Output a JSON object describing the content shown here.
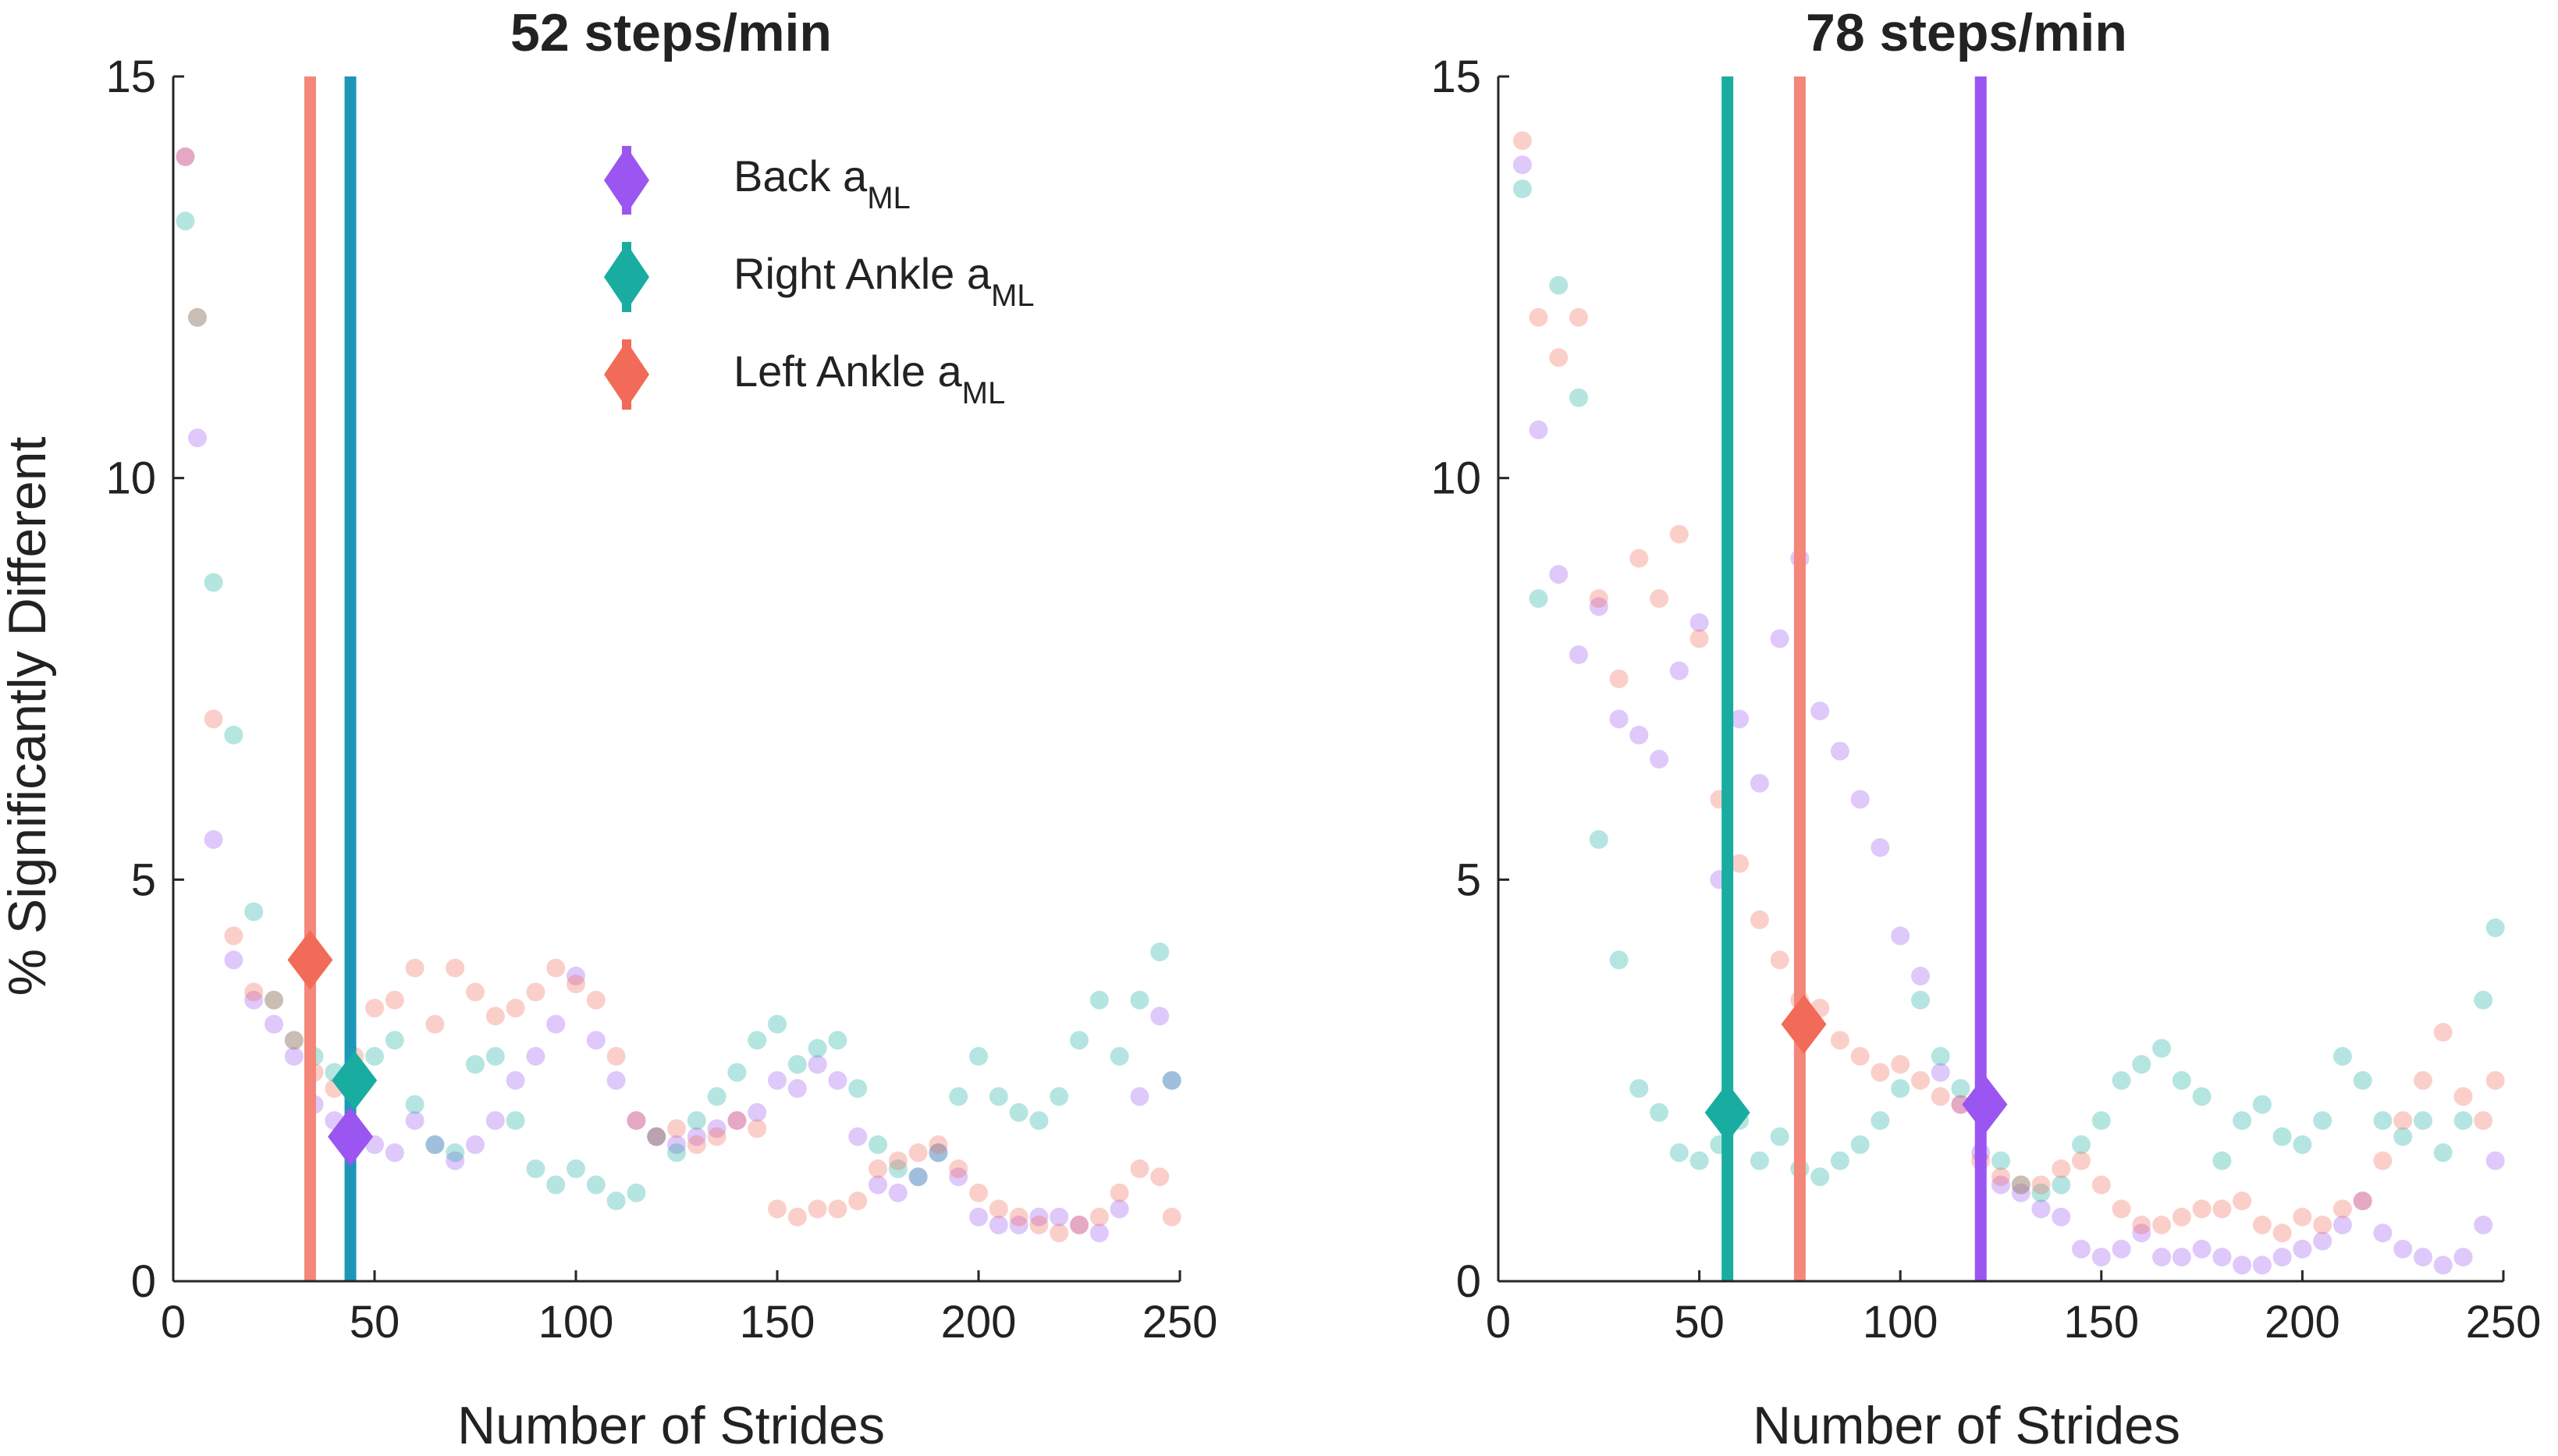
{
  "y_axis_label": "% Significantly Different",
  "legend": {
    "entries": [
      {
        "label": "Back a",
        "subscript": "ML",
        "color": "#9b55f0"
      },
      {
        "label": "Right Ankle a",
        "subscript": "ML",
        "color": "#18ada0"
      },
      {
        "label": "Left Ankle a",
        "subscript": "ML",
        "color": "#f26a58"
      }
    ]
  },
  "colors": {
    "back": "#9b55f0",
    "right_ankle": "#18ada0",
    "left_ankle": "#f26a58",
    "left_ankle_line": "#f4877a",
    "right_ankle_line_left_panel": "#1c97b8",
    "axis": "#262626"
  },
  "chart_data": [
    {
      "type": "scatter",
      "title": "52 steps/min",
      "xlabel": "Number of Strides",
      "ylabel": "% Significantly Different",
      "xlim": [
        0,
        250
      ],
      "ylim": [
        0,
        15
      ],
      "xticks": [
        "0",
        "50",
        "100",
        "150",
        "200",
        "250"
      ],
      "yticks": [
        "0",
        "5",
        "10",
        "15"
      ],
      "vertical_lines": [
        {
          "series": "Left Ankle",
          "x": 34
        },
        {
          "series": "Right Ankle",
          "x": 44
        }
      ],
      "markers": [
        {
          "series": "Left Ankle",
          "x": 34,
          "y": 4.0
        },
        {
          "series": "Right Ankle",
          "x": 45,
          "y": 2.5
        },
        {
          "series": "Back",
          "x": 44,
          "y": 1.8
        }
      ],
      "series": [
        {
          "name": "Back",
          "x": [
            3,
            6,
            10,
            15,
            20,
            25,
            30,
            35,
            40,
            45,
            50,
            55,
            60,
            65,
            70,
            75,
            80,
            85,
            90,
            95,
            100,
            105,
            110,
            115,
            120,
            125,
            130,
            135,
            140,
            145,
            150,
            155,
            160,
            165,
            170,
            175,
            180,
            185,
            190,
            195,
            200,
            205,
            210,
            215,
            220,
            225,
            230,
            235,
            240,
            245,
            248
          ],
          "y": [
            14.0,
            10.5,
            5.5,
            4.0,
            3.5,
            3.2,
            2.8,
            2.2,
            2.0,
            1.8,
            1.7,
            1.6,
            2.0,
            1.7,
            1.5,
            1.7,
            2.0,
            2.5,
            2.8,
            3.2,
            3.8,
            3.0,
            2.5,
            2.0,
            1.8,
            1.7,
            1.8,
            1.9,
            2.0,
            2.1,
            2.5,
            2.4,
            2.7,
            2.5,
            1.8,
            1.2,
            1.1,
            1.3,
            1.6,
            1.3,
            0.8,
            0.7,
            0.7,
            0.8,
            0.8,
            0.7,
            0.6,
            0.9,
            2.3,
            3.3,
            2.5
          ]
        },
        {
          "name": "Right Ankle",
          "x": [
            3,
            6,
            10,
            15,
            20,
            25,
            30,
            35,
            40,
            45,
            50,
            55,
            60,
            65,
            70,
            75,
            80,
            85,
            90,
            95,
            100,
            105,
            110,
            115,
            120,
            125,
            130,
            135,
            140,
            145,
            150,
            155,
            160,
            165,
            170,
            175,
            180,
            185,
            190,
            195,
            200,
            205,
            210,
            215,
            220,
            225,
            230,
            235,
            240,
            245,
            248
          ],
          "y": [
            13.2,
            12.0,
            8.7,
            6.8,
            4.6,
            3.5,
            3.0,
            2.8,
            2.6,
            2.4,
            2.8,
            3.0,
            2.2,
            1.7,
            1.6,
            2.7,
            2.8,
            2.0,
            1.4,
            1.2,
            1.4,
            1.2,
            1.0,
            1.1,
            1.8,
            1.6,
            2.0,
            2.3,
            2.6,
            3.0,
            3.2,
            2.7,
            2.9,
            3.0,
            2.4,
            1.7,
            1.4,
            1.3,
            1.6,
            2.3,
            2.8,
            2.3,
            2.1,
            2.0,
            2.3,
            3.0,
            3.5,
            2.8,
            3.5,
            4.1,
            2.5
          ]
        },
        {
          "name": "Left Ankle",
          "x": [
            3,
            6,
            10,
            15,
            20,
            25,
            30,
            35,
            40,
            45,
            50,
            55,
            60,
            65,
            70,
            75,
            80,
            85,
            90,
            95,
            100,
            105,
            110,
            115,
            120,
            125,
            130,
            135,
            140,
            145,
            150,
            155,
            160,
            165,
            170,
            175,
            180,
            185,
            190,
            195,
            200,
            205,
            210,
            215,
            220,
            225,
            230,
            235,
            240,
            245,
            248
          ],
          "y": [
            14.0,
            12.0,
            7.0,
            4.3,
            3.6,
            3.5,
            3.0,
            2.6,
            2.4,
            2.8,
            3.4,
            3.5,
            3.9,
            3.2,
            3.9,
            3.6,
            3.3,
            3.4,
            3.6,
            3.9,
            3.7,
            3.5,
            2.8,
            2.0,
            1.8,
            1.9,
            1.7,
            1.8,
            2.0,
            1.9,
            0.9,
            0.8,
            0.9,
            0.9,
            1.0,
            1.4,
            1.5,
            1.6,
            1.7,
            1.4,
            1.1,
            0.9,
            0.8,
            0.7,
            0.6,
            0.7,
            0.8,
            1.1,
            1.4,
            1.3,
            0.8
          ]
        }
      ]
    },
    {
      "type": "scatter",
      "title": "78 steps/min",
      "xlabel": "Number of Strides",
      "ylabel": "",
      "xlim": [
        0,
        250
      ],
      "ylim": [
        0,
        15
      ],
      "xticks": [
        "0",
        "50",
        "100",
        "150",
        "200",
        "250"
      ],
      "yticks": [
        "0",
        "5",
        "10",
        "15"
      ],
      "vertical_lines": [
        {
          "series": "Right Ankle",
          "x": 57
        },
        {
          "series": "Left Ankle",
          "x": 75
        },
        {
          "series": "Back",
          "x": 120
        }
      ],
      "markers": [
        {
          "series": "Right Ankle",
          "x": 57,
          "y": 2.1
        },
        {
          "series": "Left Ankle",
          "x": 76,
          "y": 3.2
        },
        {
          "series": "Back",
          "x": 121,
          "y": 2.2
        }
      ],
      "series": [
        {
          "name": "Back",
          "x": [
            6,
            10,
            15,
            20,
            25,
            30,
            35,
            40,
            45,
            50,
            55,
            60,
            65,
            70,
            75,
            80,
            85,
            90,
            95,
            100,
            105,
            110,
            115,
            120,
            125,
            130,
            135,
            140,
            145,
            150,
            155,
            160,
            165,
            170,
            175,
            180,
            185,
            190,
            195,
            200,
            205,
            210,
            215,
            220,
            225,
            230,
            235,
            240,
            245,
            248
          ],
          "y": [
            13.9,
            10.6,
            8.8,
            7.8,
            8.4,
            7.0,
            6.8,
            6.5,
            7.6,
            8.2,
            5.0,
            7.0,
            6.2,
            8.0,
            9.0,
            7.1,
            6.6,
            6.0,
            5.4,
            4.3,
            3.8,
            2.6,
            2.2,
            1.6,
            1.2,
            1.1,
            0.9,
            0.8,
            0.4,
            0.3,
            0.4,
            0.6,
            0.3,
            0.3,
            0.4,
            0.3,
            0.2,
            0.2,
            0.3,
            0.4,
            0.5,
            0.7,
            1.0,
            0.6,
            0.4,
            0.3,
            0.2,
            0.3,
            0.7,
            1.5
          ]
        },
        {
          "name": "Right Ankle",
          "x": [
            6,
            10,
            15,
            20,
            25,
            30,
            35,
            40,
            45,
            50,
            55,
            60,
            65,
            70,
            75,
            80,
            85,
            90,
            95,
            100,
            105,
            110,
            115,
            120,
            125,
            130,
            135,
            140,
            145,
            150,
            155,
            160,
            165,
            170,
            175,
            180,
            185,
            190,
            195,
            200,
            205,
            210,
            215,
            220,
            225,
            230,
            235,
            240,
            245,
            248
          ],
          "y": [
            13.6,
            8.5,
            12.4,
            11.0,
            5.5,
            4.0,
            2.4,
            2.1,
            1.6,
            1.5,
            1.7,
            2.0,
            1.5,
            1.8,
            1.4,
            1.3,
            1.5,
            1.7,
            2.0,
            2.4,
            3.5,
            2.8,
            2.4,
            2.1,
            1.5,
            1.2,
            1.1,
            1.2,
            1.7,
            2.0,
            2.5,
            2.7,
            2.9,
            2.5,
            2.3,
            1.5,
            2.0,
            2.2,
            1.8,
            1.7,
            2.0,
            2.8,
            2.5,
            2.0,
            1.8,
            2.0,
            1.6,
            2.0,
            3.5,
            4.4
          ]
        },
        {
          "name": "Left Ankle",
          "x": [
            6,
            10,
            15,
            20,
            25,
            30,
            35,
            40,
            45,
            50,
            55,
            60,
            65,
            70,
            75,
            80,
            85,
            90,
            95,
            100,
            105,
            110,
            115,
            120,
            125,
            130,
            135,
            140,
            145,
            150,
            155,
            160,
            165,
            170,
            175,
            180,
            185,
            190,
            195,
            200,
            205,
            210,
            215,
            220,
            225,
            230,
            235,
            240,
            245,
            248
          ],
          "y": [
            14.2,
            12.0,
            11.5,
            12.0,
            8.5,
            7.5,
            9.0,
            8.5,
            9.3,
            8.0,
            6.0,
            5.2,
            4.5,
            4.0,
            3.5,
            3.4,
            3.0,
            2.8,
            2.6,
            2.7,
            2.5,
            2.3,
            2.2,
            1.5,
            1.3,
            1.2,
            1.2,
            1.4,
            1.5,
            1.2,
            0.9,
            0.7,
            0.7,
            0.8,
            0.9,
            0.9,
            1.0,
            0.7,
            0.6,
            0.8,
            0.7,
            0.9,
            1.0,
            1.5,
            2.0,
            2.5,
            3.1,
            2.3,
            2.0,
            2.5
          ]
        }
      ]
    }
  ]
}
